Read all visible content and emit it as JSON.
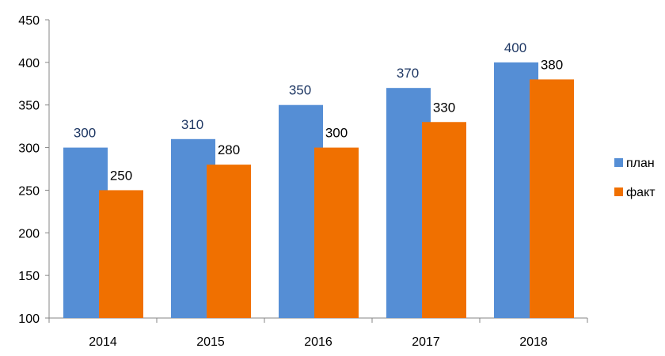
{
  "chart_data": {
    "type": "bar",
    "categories": [
      "2014",
      "2015",
      "2016",
      "2017",
      "2018"
    ],
    "series": [
      {
        "name": "план",
        "values": [
          300,
          310,
          350,
          370,
          400
        ],
        "color": "#558ED5",
        "label_color": "#1F3864"
      },
      {
        "name": "факт",
        "values": [
          250,
          280,
          300,
          330,
          380
        ],
        "color": "#F07000",
        "label_color": "#000000"
      }
    ],
    "ylim": [
      100,
      450
    ],
    "yticks": [
      100,
      150,
      200,
      250,
      300,
      350,
      400,
      450
    ],
    "title": "",
    "xlabel": "",
    "ylabel": "",
    "grid": false,
    "legend_position": "right"
  }
}
